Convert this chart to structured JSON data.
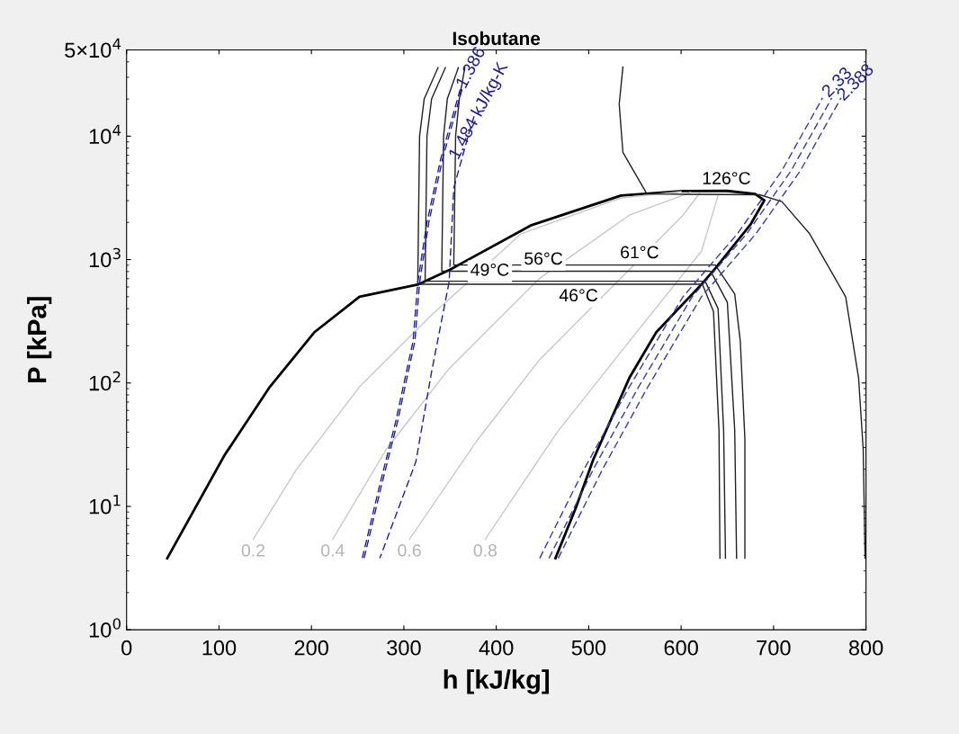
{
  "chart_data": {
    "type": "line",
    "title": "Isobutane",
    "xlabel": "h [kJ/kg]",
    "ylabel": "P [kPa]",
    "log": "y",
    "xlim": [
      0,
      800
    ],
    "xticks": [
      0,
      100,
      200,
      300,
      400,
      500,
      600,
      700,
      800
    ],
    "ylim": [
      1,
      50000
    ],
    "yticks": [
      {
        "value": 1,
        "label": "10$^{0}$"
      },
      {
        "value": 10,
        "label": "10$^{1}$"
      },
      {
        "value": 100,
        "label": "10$^{2}$"
      },
      {
        "value": 1000,
        "label": "10$^{3}$"
      },
      {
        "value": 10000,
        "label": "10$^{4}$"
      },
      {
        "value": 50000,
        "label": "5×10$^{4}$"
      }
    ],
    "grid": false,
    "legend": false,
    "marker": "none",
    "series": [
      {
        "color": "#000000",
        "line_style": "solid",
        "x": [
          44,
          106,
          155,
          203,
          252,
          316,
          350,
          438,
          535,
          602,
          650,
          680,
          690,
          675,
          636,
          622,
          573,
          544,
          505,
          486,
          464
        ],
        "values": [
          3.8,
          26,
          93,
          257,
          500,
          630,
          830,
          1900,
          3300,
          3590,
          3600,
          3400,
          3020,
          1920,
          830,
          630,
          257,
          110,
          24,
          9.7,
          3.8
        ]
      },
      {
        "color": "#c8c8c8",
        "line_style": "solid",
        "x": [
          137,
          184,
          252,
          330,
          427,
          535,
          600
        ],
        "values": [
          5.4,
          20,
          93,
          355,
          1620,
          3160,
          3550
        ]
      },
      {
        "color": "#c8c8c8",
        "line_style": "solid",
        "x": [
          223,
          281,
          349,
          447,
          544,
          610
        ],
        "values": [
          5.4,
          29,
          131,
          706,
          2290,
          3500
        ]
      },
      {
        "color": "#c8c8c8",
        "line_style": "solid",
        "x": [
          306,
          379,
          447,
          544,
          602,
          620
        ],
        "values": [
          5.4,
          34,
          155,
          830,
          2290,
          3450
        ]
      },
      {
        "color": "#c8c8c8",
        "line_style": "solid",
        "x": [
          388,
          466,
          544,
          622,
          640
        ],
        "values": [
          5.4,
          40,
          218,
          1170,
          3300
        ]
      },
      {
        "color": "#202020",
        "line_style": "solid",
        "x": [
          337,
          322,
          317,
          315,
          623,
          635,
          641,
          642
        ],
        "values": [
          36000,
          20000,
          10000,
          631,
          631,
          380,
          41,
          3.8
        ]
      },
      {
        "color": "#202020",
        "line_style": "solid",
        "x": [
          345,
          330,
          325,
          323,
          626,
          640,
          646,
          648
        ],
        "values": [
          36000,
          20000,
          10000,
          668,
          668,
          400,
          41,
          3.8
        ]
      },
      {
        "color": "#202020",
        "line_style": "solid",
        "x": [
          359,
          347,
          343,
          341,
          632,
          650,
          658,
          660
        ],
        "values": [
          36000,
          20000,
          10000,
          804,
          804,
          450,
          41,
          3.8
        ]
      },
      {
        "color": "#202020",
        "line_style": "solid",
        "x": [
          366,
          360,
          356,
          354,
          637,
          658,
          664,
          669,
          669
        ],
        "values": [
          36000,
          20000,
          10000,
          904,
          904,
          525,
          219,
          35,
          3.8
        ]
      },
      {
        "color": "#202020",
        "line_style": "solid",
        "x": [
          537,
          533,
          537,
          563,
          685,
          709,
          739,
          778,
          792,
          797,
          799
        ],
        "values": [
          36300,
          18200,
          7400,
          3400,
          3350,
          2950,
          1620,
          500,
          110,
          29,
          3.8
        ]
      },
      {
        "color": "#1f1f9a",
        "line_style": "dashed",
        "x": [
          361,
          340,
          325,
          315,
          310,
          291,
          274,
          255
        ],
        "values": [
          24000,
          6600,
          2000,
          650,
          219,
          48,
          15,
          3.8
        ]
      },
      {
        "color": "#1f1f9a",
        "line_style": "dashed",
        "x": [
          363,
          342,
          327,
          317,
          312,
          293,
          276,
          257
        ],
        "values": [
          24000,
          6600,
          2000,
          650,
          219,
          48,
          15,
          3.8
        ]
      },
      {
        "color": "#1f1f9a",
        "line_style": "dashed",
        "x": [
          376,
          371,
          354,
          349,
          330,
          313,
          274
        ],
        "values": [
          14500,
          11000,
          3800,
          660,
          123,
          23,
          3.8
        ]
      },
      {
        "color": "#3a3aa8",
        "line_style": "dashed",
        "x": [
          447,
          495,
          544,
          602,
          661,
          709,
          753
        ],
        "values": [
          3.8,
          20,
          93,
          500,
          1620,
          5250,
          20400
        ]
      },
      {
        "color": "#3a3aa8",
        "line_style": "dashed",
        "x": [
          457,
          505,
          554,
          612,
          671,
          719,
          763
        ],
        "values": [
          3.8,
          20,
          93,
          500,
          1620,
          5250,
          20400
        ]
      },
      {
        "color": "#3a3aa8",
        "line_style": "dashed",
        "x": [
          467,
          515,
          564,
          622,
          681,
          729,
          773
        ],
        "values": [
          3.8,
          20,
          93,
          500,
          1620,
          5250,
          20400
        ]
      }
    ],
    "annotations": [
      {
        "text": "126°C",
        "x": 649,
        "y": 3360
      },
      {
        "text": "49°C",
        "x": 393,
        "y": 668
      },
      {
        "text": "56°C",
        "x": 451,
        "y": 804
      },
      {
        "text": "61°C",
        "x": 555,
        "y": 904
      },
      {
        "text": "46°C",
        "x": 489,
        "y": 631
      },
      {
        "text": "0.2",
        "x": 137,
        "y": 5.4
      },
      {
        "text": "0.4",
        "x": 223,
        "y": 5.4
      },
      {
        "text": "0.6",
        "x": 306,
        "y": 5.4
      },
      {
        "text": "0.8",
        "x": 388,
        "y": 5.4
      },
      {
        "text": "1.386",
        "x": 361,
        "y": 24000
      },
      {
        "text": "1.484 kJ/kg-K",
        "x": 376,
        "y": 14500
      },
      {
        "text": "2.33",
        "x": 753,
        "y": 20400
      },
      {
        "text": "2.388",
        "x": 773,
        "y": 20400
      }
    ]
  }
}
